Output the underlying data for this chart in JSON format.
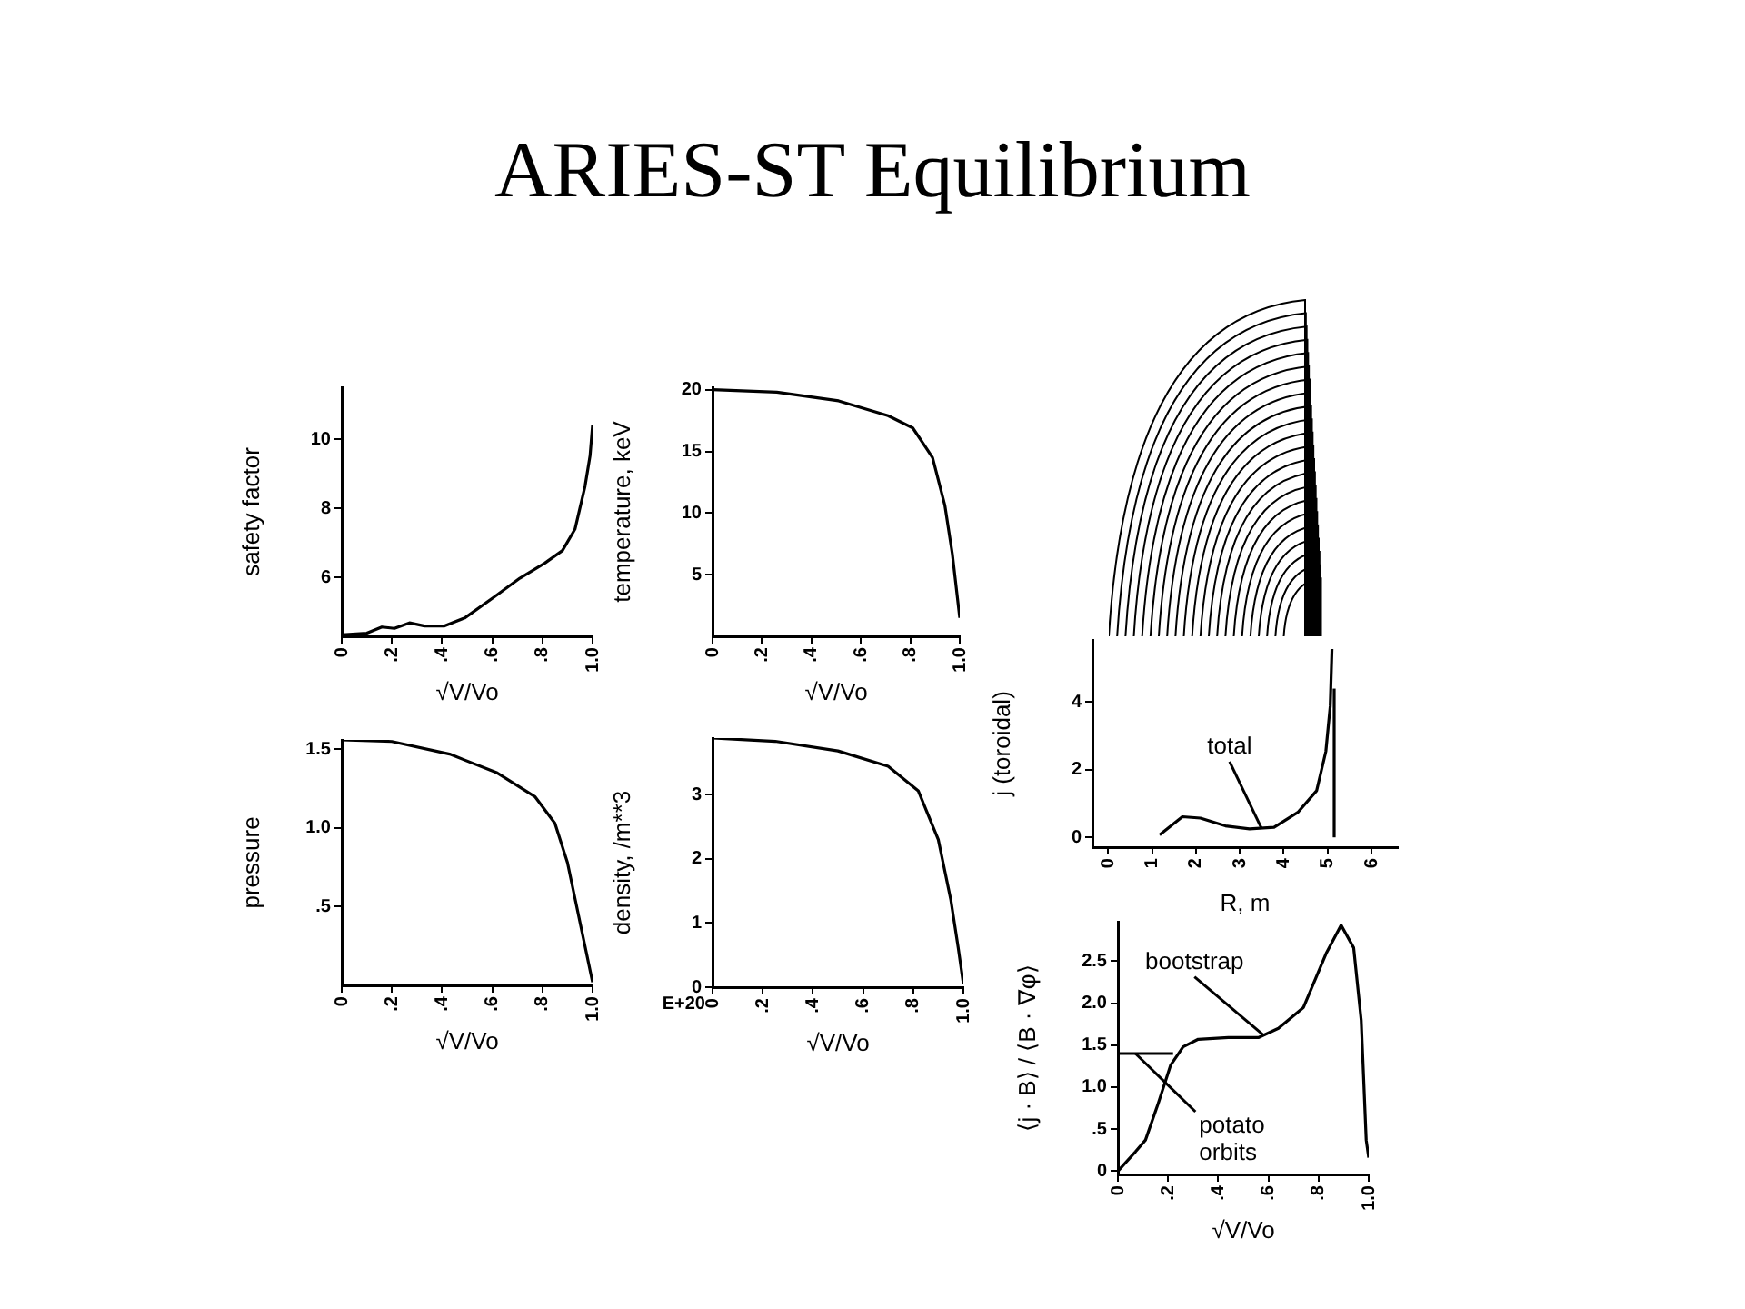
{
  "chart_data": [
    {
      "type": "line",
      "title": "ARIES-ST Equilibrium",
      "xlabel": "√V/Vo",
      "ylabel": "safety factor",
      "marker": "none",
      "grid": false,
      "xlim": [
        0,
        1
      ],
      "xticks": [
        0,
        {
          "value": 0.2,
          "label": ".2"
        },
        {
          "value": 0.4,
          "label": ".4"
        },
        {
          "value": 0.6,
          "label": ".6"
        },
        {
          "value": 0.8,
          "label": ".8"
        },
        {
          "value": 1,
          "label": "1.0"
        }
      ],
      "ylim": [
        4.3,
        11.5
      ],
      "yticks": [
        6,
        8,
        10
      ],
      "series": [
        {
          "color": "#000000",
          "x": [
            0,
            0.1,
            0.16,
            0.21,
            0.27,
            0.33,
            0.41,
            0.49,
            0.61,
            0.71,
            0.81,
            0.88,
            0.93,
            0.97,
            0.99,
            1.0
          ],
          "values": [
            4.34,
            4.39,
            4.57,
            4.53,
            4.69,
            4.6,
            4.6,
            4.83,
            5.45,
            5.98,
            6.42,
            6.78,
            7.4,
            8.64,
            9.52,
            10.4
          ]
        }
      ]
    },
    {
      "type": "line",
      "xlabel": "√V/Vo",
      "ylabel": "temperature, keV",
      "marker": "none",
      "grid": false,
      "xlim": [
        0,
        1
      ],
      "xticks": [
        0,
        {
          "value": 0.2,
          "label": ".2"
        },
        {
          "value": 0.4,
          "label": ".4"
        },
        {
          "value": 0.6,
          "label": ".6"
        },
        {
          "value": 0.8,
          "label": ".8"
        },
        {
          "value": 1,
          "label": "1.0"
        }
      ],
      "ylim": [
        0,
        20.2
      ],
      "yticks": [
        5,
        10,
        15,
        20
      ],
      "series": [
        {
          "color": "#000000",
          "x": [
            0,
            0.26,
            0.51,
            0.71,
            0.81,
            0.89,
            0.94,
            0.97,
            1.0
          ],
          "values": [
            20,
            19.8,
            19.1,
            17.9,
            16.9,
            14.5,
            10.6,
            6.7,
            1.5
          ]
        }
      ]
    },
    {
      "type": "line",
      "xlabel": "√V/Vo",
      "ylabel": "pressure",
      "marker": "none",
      "grid": false,
      "xlim": [
        0,
        1
      ],
      "xticks": [
        0,
        {
          "value": 0.2,
          "label": ".2"
        },
        {
          "value": 0.4,
          "label": ".4"
        },
        {
          "value": 0.6,
          "label": ".6"
        },
        {
          "value": 0.8,
          "label": ".8"
        },
        {
          "value": 1,
          "label": "1.0"
        }
      ],
      "ylim": [
        0,
        1.56
      ],
      "yticks": [
        {
          "value": 0.5,
          "label": ".5"
        },
        {
          "value": 1,
          "label": "1.0"
        },
        1.5
      ],
      "series": [
        {
          "color": "#000000",
          "x": [
            0,
            0.2,
            0.43,
            0.62,
            0.77,
            0.85,
            0.9,
            0.95,
            1.0
          ],
          "values": [
            1.56,
            1.55,
            1.47,
            1.35,
            1.2,
            1.03,
            0.78,
            0.4,
            0.02
          ]
        }
      ]
    },
    {
      "type": "line",
      "xlabel": "√V/Vo",
      "ylabel": "density, /m**3",
      "marker": "none",
      "grid": false,
      "annotations": [
        "E+20"
      ],
      "xlim": [
        0,
        1
      ],
      "xticks": [
        0,
        {
          "value": 0.2,
          "label": ".2"
        },
        {
          "value": 0.4,
          "label": ".4"
        },
        {
          "value": 0.6,
          "label": ".6"
        },
        {
          "value": 0.8,
          "label": ".8"
        },
        {
          "value": 1,
          "label": "1.0"
        }
      ],
      "ylim": [
        0,
        3.88
      ],
      "yticks": [
        0,
        1,
        2,
        3
      ],
      "series": [
        {
          "color": "#000000",
          "x": [
            0,
            0.25,
            0.5,
            0.7,
            0.82,
            0.9,
            0.95,
            0.98,
            1.0
          ],
          "values": [
            3.88,
            3.83,
            3.68,
            3.44,
            3.06,
            2.3,
            1.36,
            0.6,
            0.05
          ]
        }
      ]
    },
    {
      "type": "line",
      "xlabel": "R, m",
      "ylabel": "j (toroidal)",
      "marker": "none",
      "grid": false,
      "annotations": [
        {
          "text": "total",
          "x": 3.5,
          "y": 0.25
        }
      ],
      "xlim": [
        -0.36,
        6.6
      ],
      "xticks": [
        0,
        1,
        2,
        3,
        4,
        5,
        6
      ],
      "ylim": [
        -0.29,
        5.84
      ],
      "yticks": [
        0,
        2,
        4
      ],
      "series": [
        {
          "color": "#000000",
          "x": [
            1.17,
            1.69,
            2.1,
            2.67,
            3.22,
            3.78,
            4.33,
            4.75,
            4.96,
            5.06,
            5.1
          ],
          "values": [
            0.07,
            0.61,
            0.57,
            0.34,
            0.25,
            0.3,
            0.75,
            1.38,
            2.54,
            3.88,
            5.57
          ]
        },
        {
          "color": "#000000",
          "x": [
            5.15,
            5.15
          ],
          "values": [
            0,
            4.4
          ]
        }
      ]
    },
    {
      "type": "line",
      "xlabel": "√V/Vo",
      "ylabel": "⟨j · B⟩ / ⟨B · ∇φ⟩",
      "marker": "none",
      "grid": false,
      "annotations": [
        {
          "text": "bootstrap",
          "x": 0.58,
          "y": 1.62
        },
        {
          "text": "potato orbits",
          "x": 0.07,
          "y": 1.4
        }
      ],
      "xlim": [
        0,
        1
      ],
      "xticks": [
        0,
        {
          "value": 0.2,
          "label": ".2"
        },
        {
          "value": 0.4,
          "label": ".4"
        },
        {
          "value": 0.6,
          "label": ".6"
        },
        {
          "value": 0.8,
          "label": ".8"
        },
        {
          "value": 1,
          "label": "1.0"
        }
      ],
      "ylim": [
        -0.04,
        2.97
      ],
      "yticks": [
        0,
        {
          "value": 0.5,
          "label": ".5"
        },
        {
          "value": 1,
          "label": "1.0"
        },
        1.5,
        {
          "value": 2,
          "label": "2.0"
        },
        2.5
      ],
      "series": [
        {
          "color": "#000000",
          "x": [
            0,
            0.07,
            0.11,
            0.16,
            0.21,
            0.26,
            0.32,
            0.44,
            0.56,
            0.64,
            0.74,
            0.83,
            0.89,
            0.94,
            0.97,
            0.99,
            1.0
          ],
          "values": [
            0,
            0.23,
            0.37,
            0.8,
            1.26,
            1.48,
            1.57,
            1.59,
            1.59,
            1.7,
            1.95,
            2.59,
            2.93,
            2.66,
            1.8,
            0.37,
            0.16
          ]
        },
        {
          "color": "#000000",
          "x": [
            0,
            0.22
          ],
          "values": [
            1.4,
            1.4
          ]
        }
      ]
    }
  ]
}
